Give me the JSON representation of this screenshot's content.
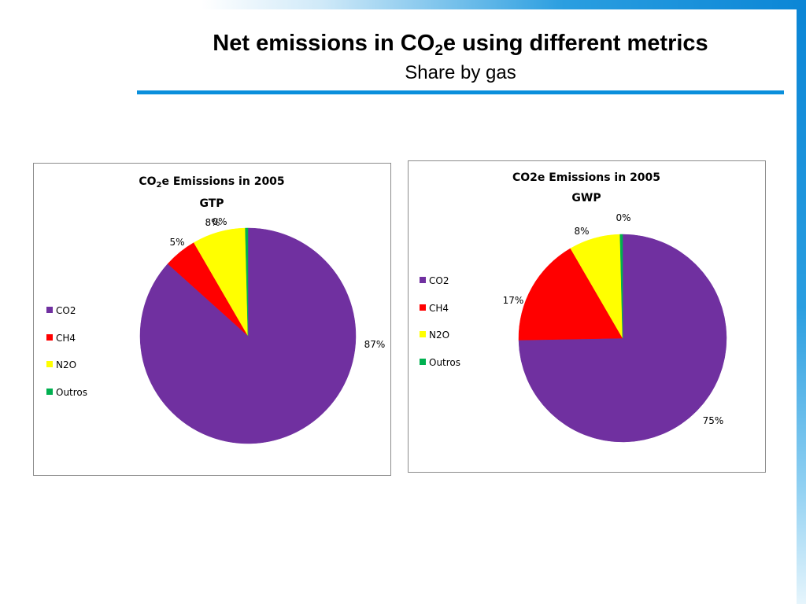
{
  "slide": {
    "title_part1": "Net emissions in CO",
    "title_sub": "2",
    "title_part2": "e using different metrics",
    "subtitle": "Share by gas"
  },
  "legend": [
    {
      "label": "CO2",
      "color": "#7030A0"
    },
    {
      "label": "CH4",
      "color": "#FF0000"
    },
    {
      "label": "N2O",
      "color": "#FFFF00"
    },
    {
      "label": "Outros",
      "color": "#00B050"
    }
  ],
  "chart_data": [
    {
      "type": "pie",
      "title_part1": "CO",
      "title_sub": "2",
      "title_part2": "e Emissions in 2005",
      "title_line2": "GTP",
      "categories": [
        "CO2",
        "CH4",
        "N2O",
        "Outros"
      ],
      "values": [
        87,
        5,
        8,
        0.4
      ],
      "data_labels": [
        "87%",
        "5%",
        "8%",
        "0%"
      ],
      "colors": [
        "#7030A0",
        "#FF0000",
        "#FFFF00",
        "#00B050"
      ],
      "legend_position": "left"
    },
    {
      "type": "pie",
      "title": "CO2e Emissions in 2005",
      "title_line2": "GWP",
      "categories": [
        "CO2",
        "CH4",
        "N2O",
        "Outros"
      ],
      "values": [
        75,
        17,
        8,
        0.4
      ],
      "data_labels": [
        "75%",
        "17%",
        "8%",
        "0%"
      ],
      "colors": [
        "#7030A0",
        "#FF0000",
        "#FFFF00",
        "#00B050"
      ],
      "legend_position": "left"
    }
  ]
}
